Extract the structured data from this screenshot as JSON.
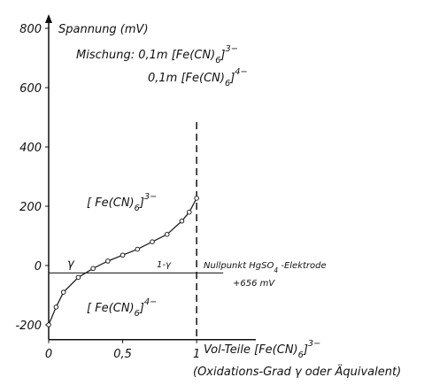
{
  "chart_data": {
    "type": "line",
    "y_label": "Spannung (mV)",
    "mix_parts": [
      "Mischung: 0,1m [Fe(CN)",
      "6",
      "]",
      "3−"
    ],
    "mix2_parts": [
      "0,1m [Fe(CN)",
      "6",
      "]",
      "4−"
    ],
    "ox_parts": [
      "[ Fe(CN)",
      "6",
      "]",
      "3−"
    ],
    "red_parts": [
      "[ Fe(CN)",
      "6",
      "]",
      "4−"
    ],
    "gamma": "γ",
    "one_minus_gamma": "1-γ",
    "ref_parts": [
      "Nullpunkt HgSO",
      "4",
      " -Elektrode"
    ],
    "ref_offset": "+656 mV",
    "x_label_parts": [
      "Vol-Teile [Fe(CN)",
      "6",
      "]",
      "3−"
    ],
    "x_sublabel_parts": [
      "(Oxidations-Grad ",
      "γ",
      " oder Äquivalent)"
    ],
    "x": [
      0,
      0.05,
      0.1,
      0.2,
      0.3,
      0.4,
      0.5,
      0.6,
      0.7,
      0.8,
      0.9,
      0.95,
      1.0
    ],
    "values": [
      -200,
      -140,
      -90,
      -40,
      -10,
      15,
      35,
      55,
      80,
      105,
      150,
      180,
      227
    ],
    "color": "#222",
    "reference_line": -25,
    "equivalence_x": 1,
    "xlim": [
      0,
      1.4
    ],
    "ylim": [
      -250,
      800
    ],
    "xticks": [
      0,
      {
        "value": 0.5,
        "label": "0,5"
      },
      1
    ],
    "yticks": [
      -200,
      0,
      200,
      400,
      600,
      800
    ]
  }
}
